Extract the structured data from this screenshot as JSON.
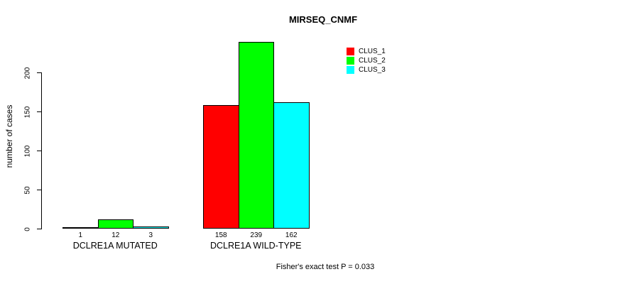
{
  "chart_data": {
    "type": "bar",
    "title": "MIRSEQ_CNMF",
    "ylabel": "number of cases",
    "xlabel": "",
    "ylim": [
      0,
      200
    ],
    "yticks": [
      0,
      50,
      100,
      150,
      200
    ],
    "grid": false,
    "legend_position": "top-right",
    "categories": [
      "DCLRE1A MUTATED",
      "DCLRE1A WILD-TYPE"
    ],
    "series": [
      {
        "name": "CLUS_1",
        "color": "#ff0000",
        "values": [
          1,
          158
        ]
      },
      {
        "name": "CLUS_2",
        "color": "#00ff00",
        "values": [
          12,
          239
        ]
      },
      {
        "name": "CLUS_3",
        "color": "#00ffff",
        "values": [
          3,
          162
        ]
      }
    ],
    "annotation": "Fisher's exact test P = 0.033"
  },
  "colors": {
    "axis": "#000000",
    "background": "#ffffff",
    "bar_border": "#000000"
  }
}
